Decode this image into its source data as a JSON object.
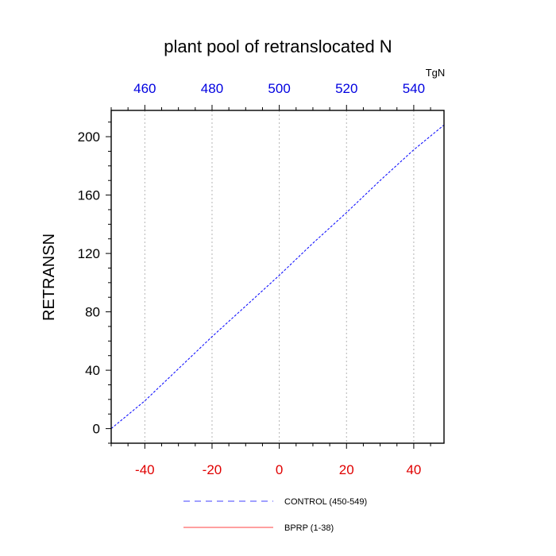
{
  "chart_data": {
    "type": "line",
    "title": "plant pool of retranslocated N",
    "ylabel": "RETRANSN",
    "xlabel": "",
    "top_axis_unit": "TgN",
    "xlim": [
      -50,
      49
    ],
    "ylim": [
      -10,
      218
    ],
    "x_ticks": [
      -40,
      -20,
      0,
      20,
      40
    ],
    "top_ticks": [
      460,
      480,
      500,
      520,
      540
    ],
    "top_axis_offset": 500,
    "y_ticks": [
      0,
      40,
      80,
      120,
      160,
      200
    ],
    "grid": "vertical dotted at major x ticks",
    "series": [
      {
        "name": "CONTROL (450-549)",
        "color": "#0000ff",
        "style": "dashed",
        "x": [
          -50,
          -40,
          -30,
          -20,
          -10,
          0,
          10,
          20,
          30,
          40,
          49
        ],
        "y": [
          0,
          19,
          41,
          63,
          84,
          105,
          127,
          148,
          170,
          191,
          208
        ]
      },
      {
        "name": "BPRP (1-38)",
        "color": "#ff0000",
        "style": "solid",
        "x": [],
        "y": []
      }
    ],
    "legend_position": "bottom"
  }
}
